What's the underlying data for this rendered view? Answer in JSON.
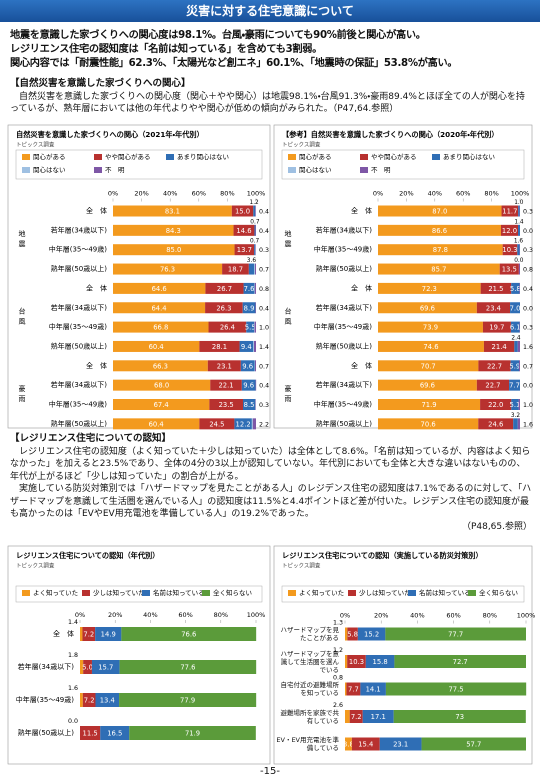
{
  "header": {
    "title": "災害に対する住宅意識について"
  },
  "summary": [
    "地震を意識した家づくりへの関心度は98.1%。台風・豪雨についても90%前後と関心が高い。",
    "レジリエンス住宅の認知度は「名前は知っている」を含めても3割弱。",
    "関心内容では「耐震性能」62.3%、「太陽光など創エネ」60.1%、「地震時の保証」53.8%が高い。"
  ],
  "sections": [
    {
      "heading": "【自然災害を意識した家づくりへの関心】",
      "paragraphs": [
        "自然災害を意識した家づくりへの関心度（関心＋やや関心）は地震98.1%・台風91.3%・豪雨89.4%とほぼ全ての人が関心を持っているが、熟年層においては他の年代よりやや関心が低めの傾向がみられた。（P47,64.参照）"
      ]
    },
    {
      "heading": "【レジリエンス住宅についての認知】",
      "paragraphs": [
        "レジリエンス住宅の認知度（よく知っていた＋少しは知っていた）は全体として8.6%。「名前は知っているが、内容はよく知らなかった」を加えると23.5%であり、全体の4分の3以上が認知していない。年代別においても全体と大きな違いはないものの、年代が上がるほど「少しは知っていた」の割合が上がる。",
        "実施している防災対策別では「ハザードマップを見たことがある人」のレジデンス住宅の認知度は7.1%であるのに対して、「ハザードマップを意識して生活圏を選んでいる人」の認知度は11.5%と4.4ポイントほど差が付いた。レジデンス住宅の認知度が最も高かったのは「EVやEV用充電池を準備している人」の19.2%であった。"
      ],
      "reference": "（P48,65.参照）"
    }
  ],
  "chart_data": [
    {
      "type": "bar",
      "orientation": "horizontal",
      "stacked": true,
      "title": "自然災害を意識した家づくりへの関心（2021年・年代別）",
      "source": "トピックス調査",
      "groups": [
        "地震",
        "台風",
        "豪雨"
      ],
      "categories": [
        "全　体",
        "若年層(34歳以下)",
        "中年層(35～49歳)",
        "熟年層(50歳以上)",
        "全　体",
        "若年層(34歳以下)",
        "中年層(35～49歳)",
        "熟年層(50歳以上)",
        "全　体",
        "若年層(34歳以下)",
        "中年層(35～49歳)",
        "熟年層(50歳以上)"
      ],
      "series": [
        {
          "name": "関心がある",
          "color": "#f39a1e",
          "values": [
            83.1,
            84.3,
            85.0,
            76.3,
            64.6,
            64.4,
            66.8,
            60.4,
            66.3,
            68.0,
            67.4,
            60.4
          ],
          "value_labels": [
            "83.1",
            "84.3",
            "85.0",
            "76.3",
            "64.6",
            "64.4",
            "66.8",
            "60.4",
            "66.3",
            "68.0",
            "67.4",
            "60.4"
          ]
        },
        {
          "name": "やや関心がある",
          "color": "#b8312f",
          "values": [
            15.0,
            14.6,
            13.7,
            18.7,
            26.7,
            26.3,
            26.4,
            28.1,
            23.1,
            22.1,
            23.5,
            24.5
          ],
          "value_labels": [
            "15.0",
            "14.6",
            "13.7",
            "18.7",
            "26.7",
            "26.3",
            "26.4",
            "28.1",
            "23.1",
            "22.1",
            "23.5",
            "24.5"
          ]
        },
        {
          "name": "あまり関心はない",
          "color": "#2f6eb5",
          "values": [
            1.2,
            0.7,
            0.7,
            3.6,
            7.6,
            8.9,
            5.5,
            9.4,
            9.6,
            9.6,
            8.5,
            12.2
          ],
          "value_labels": [
            "1.2",
            "0.7",
            "0.7",
            "3.6",
            "7.6",
            "8.9",
            "5.5",
            "9.4",
            "9.6",
            "9.6",
            "8.5",
            "12.2"
          ]
        },
        {
          "name": "関心はない",
          "color": "#9fc0e2",
          "values": [
            0.3,
            0.0,
            0.3,
            0.7,
            0.3,
            0.0,
            0.3,
            0.7,
            0.3,
            0.0,
            0.3,
            0.7
          ]
        },
        {
          "name": "不　明",
          "color": "#7e57a6",
          "values": [
            0.4,
            0.4,
            0.3,
            0.7,
            0.8,
            0.4,
            1.0,
            1.4,
            0.7,
            0.4,
            0.3,
            2.2
          ],
          "value_labels": [
            "0.4",
            "0.4",
            "0.3",
            "0.7",
            "0.8",
            "0.4",
            "1.0",
            "1.4",
            "0.7",
            "0.4",
            "0.3",
            "2.2"
          ]
        }
      ],
      "xlim": [
        0,
        100
      ],
      "xticks": [
        {
          "value": 0,
          "label": "0%"
        },
        {
          "value": 20,
          "label": "20%"
        },
        {
          "value": 40,
          "label": "40%"
        },
        {
          "value": 60,
          "label": "60%"
        },
        {
          "value": 80,
          "label": "80%"
        },
        {
          "value": 100,
          "label": "100%"
        }
      ],
      "legend": "top"
    },
    {
      "type": "bar",
      "orientation": "horizontal",
      "stacked": true,
      "title": "【参考】自然災害を意識した家づくりへの関心（2020年・年代別）",
      "source": "トピックス調査",
      "groups": [
        "地震",
        "台風",
        "豪雨"
      ],
      "categories": [
        "全　体",
        "若年層(34歳以下)",
        "中年層(35～49歳)",
        "熟年層(50歳以上)",
        "全　体",
        "若年層(34歳以下)",
        "中年層(35～49歳)",
        "熟年層(50歳以上)",
        "全　体",
        "若年層(34歳以下)",
        "中年層(35～49歳)",
        "熟年層(50歳以上)"
      ],
      "series": [
        {
          "name": "関心がある",
          "color": "#f39a1e",
          "values": [
            87.0,
            86.6,
            87.8,
            85.7,
            72.3,
            69.6,
            73.9,
            74.6,
            70.7,
            69.6,
            71.9,
            70.6
          ],
          "value_labels": [
            "87.0",
            "86.6",
            "87.8",
            "85.7",
            "72.3",
            "69.6",
            "73.9",
            "74.6",
            "70.7",
            "69.6",
            "71.9",
            "70.6"
          ]
        },
        {
          "name": "やや関心がある",
          "color": "#b8312f",
          "values": [
            11.7,
            12.0,
            10.3,
            13.5,
            21.5,
            23.4,
            19.7,
            21.4,
            22.7,
            22.7,
            22.0,
            24.6
          ],
          "value_labels": [
            "11.7",
            "12.0",
            "10.3",
            "13.5",
            "21.5",
            "23.4",
            "19.7",
            "21.4",
            "22.7",
            "22.7",
            "22.0",
            "24.6"
          ]
        },
        {
          "name": "あまり関心はない",
          "color": "#2f6eb5",
          "values": [
            1.0,
            1.4,
            1.6,
            0.0,
            5.8,
            7.0,
            6.1,
            2.4,
            5.9,
            7.7,
            5.1,
            3.2
          ],
          "value_labels": [
            "1.0",
            "1.4",
            "1.6",
            "0.0",
            "5.8",
            "7.0",
            "6.1",
            "2.4",
            "5.9",
            "7.7",
            "5.1",
            "3.2"
          ]
        },
        {
          "name": "関心はない",
          "color": "#9fc0e2",
          "values": [
            0.0,
            0.0,
            0.0,
            0.0,
            0.0,
            0.0,
            0.0,
            0.0,
            0.0,
            0.0,
            0.0,
            0.0
          ]
        },
        {
          "name": "不　明",
          "color": "#7e57a6",
          "values": [
            0.3,
            0.0,
            0.3,
            0.8,
            0.4,
            0.0,
            0.3,
            1.6,
            0.7,
            0.0,
            1.0,
            1.6
          ],
          "value_labels": [
            "0.3",
            "0.0",
            "0.3",
            "0.8",
            "0.4",
            "0.0",
            "0.3",
            "1.6",
            "0.7",
            "0.0",
            "1.0",
            "1.6"
          ]
        }
      ],
      "xlim": [
        0,
        100
      ],
      "xticks": [
        {
          "value": 0,
          "label": "0%"
        },
        {
          "value": 20,
          "label": "20%"
        },
        {
          "value": 40,
          "label": "40%"
        },
        {
          "value": 60,
          "label": "60%"
        },
        {
          "value": 80,
          "label": "80%"
        },
        {
          "value": 100,
          "label": "100%"
        }
      ],
      "legend": "top"
    },
    {
      "type": "bar",
      "orientation": "horizontal",
      "stacked": true,
      "title": "レジリエンス住宅についての認知（年代別）",
      "source": "トピックス調査",
      "categories": [
        "全　体",
        "若年層(34歳以下)",
        "中年層(35～49歳)",
        "熟年層(50歳以上)"
      ],
      "series": [
        {
          "name": "よく知っていた",
          "color": "#f39a1e",
          "values": [
            1.4,
            1.8,
            1.6,
            0.0
          ],
          "value_labels": [
            "1.4",
            "1.8",
            "1.6",
            "0.0"
          ]
        },
        {
          "name": "少しは知っていた",
          "color": "#b8312f",
          "values": [
            7.2,
            5.0,
            7.2,
            11.5
          ],
          "value_labels": [
            "7.2",
            "5.0",
            "7.2",
            "11.5"
          ]
        },
        {
          "name": "名前は知っている",
          "color": "#2f6eb5",
          "values": [
            14.9,
            15.7,
            13.4,
            16.5
          ],
          "value_labels": [
            "14.9",
            "15.7",
            "13.4",
            "16.5"
          ]
        },
        {
          "name": "全く知らない",
          "color": "#5b9b3a",
          "values": [
            76.6,
            77.6,
            77.9,
            71.9
          ],
          "value_labels": [
            "76.6",
            "77.6",
            "77.9",
            "71.9"
          ]
        }
      ],
      "xlim": [
        0,
        100
      ],
      "xticks": [
        {
          "value": 0,
          "label": "0%"
        },
        {
          "value": 20,
          "label": "20%"
        },
        {
          "value": 40,
          "label": "40%"
        },
        {
          "value": 60,
          "label": "60%"
        },
        {
          "value": 80,
          "label": "80%"
        },
        {
          "value": 100,
          "label": "100%"
        }
      ],
      "legend": "top"
    },
    {
      "type": "bar",
      "orientation": "horizontal",
      "stacked": true,
      "title": "レジリエンス住宅についての認知（実施している防災対策別）",
      "source": "トピックス調査",
      "categories": [
        "ハザードマップを見たことがある",
        "ハザードマップを意識して生活圏を選んでいる",
        "自宅付近の避難場所を知っている",
        "避難場所を家族で共有している",
        "EV・EV用充電池を準備している"
      ],
      "series": [
        {
          "name": "よく知っていた",
          "color": "#f39a1e",
          "values": [
            1.3,
            1.2,
            0.8,
            2.6,
            3.8
          ],
          "value_labels": [
            "1.3",
            "1.2",
            "0.8",
            "2.6",
            "3.8"
          ]
        },
        {
          "name": "少しは知っていた",
          "color": "#b8312f",
          "values": [
            5.8,
            10.3,
            7.7,
            7.2,
            15.4
          ],
          "value_labels": [
            "5.8",
            "10.3",
            "7.7",
            "7.2",
            "15.4"
          ]
        },
        {
          "name": "名前は知っている",
          "color": "#2f6eb5",
          "values": [
            15.2,
            15.8,
            14.1,
            17.1,
            23.1
          ],
          "value_labels": [
            "15.2",
            "15.8",
            "14.1",
            "17.1",
            "23.1"
          ]
        },
        {
          "name": "全く知らない",
          "color": "#5b9b3a",
          "values": [
            77.7,
            72.7,
            77.5,
            73,
            57.7
          ],
          "value_labels": [
            "77.7",
            "72.7",
            "77.5",
            "73",
            "57.7"
          ]
        }
      ],
      "xlim": [
        0,
        100
      ],
      "xticks": [
        {
          "value": 0,
          "label": "0%"
        },
        {
          "value": 20,
          "label": "20%"
        },
        {
          "value": 40,
          "label": "40%"
        },
        {
          "value": 60,
          "label": "60%"
        },
        {
          "value": 80,
          "label": "80%"
        },
        {
          "value": 100,
          "label": "100%"
        }
      ],
      "legend": "top"
    }
  ],
  "footer": {
    "page": "-15-"
  }
}
